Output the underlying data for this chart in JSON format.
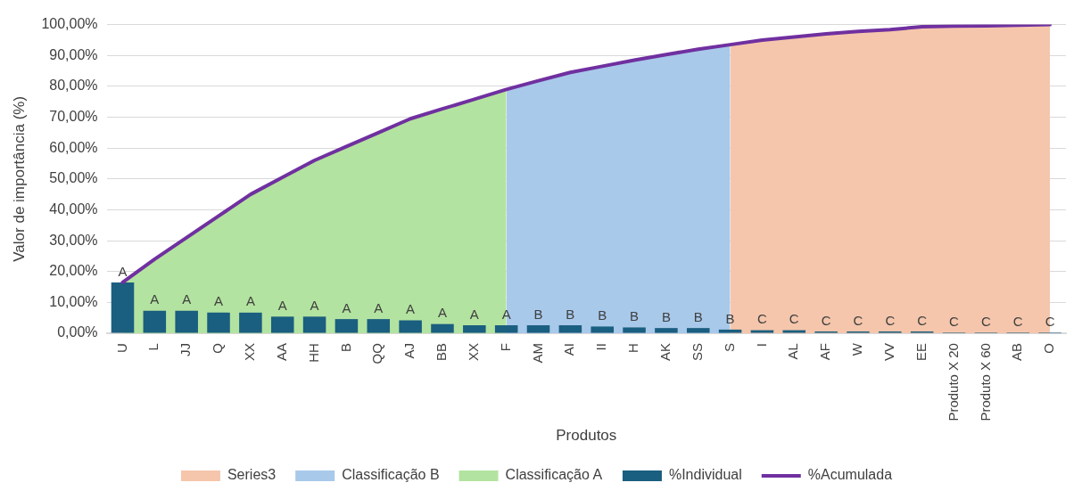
{
  "chart_data": {
    "type": "bar",
    "xlabel": "Produtos",
    "ylabel": "Valor de importância (%)",
    "categories": [
      "U",
      "L",
      "JJ",
      "Q",
      "XX",
      "AA",
      "HH",
      "B",
      "QQ",
      "AJ",
      "BB",
      "XX",
      "F",
      "AM",
      "AI",
      "II",
      "H",
      "AK",
      "SS",
      "S",
      "I",
      "AL",
      "AF",
      "W",
      "VV",
      "EE",
      "Produto X 20",
      "Produto X 60",
      "AB",
      "O"
    ],
    "series": [
      {
        "name": "Series3",
        "type": "area",
        "color": "#f5c6ac",
        "values": [
          null,
          null,
          null,
          null,
          null,
          null,
          null,
          null,
          null,
          null,
          null,
          null,
          null,
          null,
          null,
          null,
          null,
          null,
          null,
          93.5,
          95,
          96,
          97,
          97.8,
          98.4,
          99.3,
          99.5,
          99.6,
          99.8,
          100
        ]
      },
      {
        "name": "Classificação B",
        "type": "area",
        "color": "#a8c9ea",
        "values": [
          null,
          null,
          null,
          null,
          null,
          null,
          null,
          null,
          null,
          null,
          null,
          null,
          79,
          81.8,
          84.5,
          86.5,
          88.5,
          90.3,
          92,
          93.5,
          null,
          null,
          null,
          null,
          null,
          null,
          null,
          null,
          null,
          null
        ]
      },
      {
        "name": "Classificação A",
        "type": "area",
        "color": "#b3e3a0",
        "values": [
          16.5,
          24,
          31,
          38,
          45,
          50.5,
          56,
          60.5,
          65,
          69.5,
          72.7,
          75.8,
          79,
          null,
          null,
          null,
          null,
          null,
          null,
          null,
          null,
          null,
          null,
          null,
          null,
          null,
          null,
          null,
          null,
          null
        ]
      },
      {
        "name": "%Individual",
        "color": "#1a5e80",
        "values": [
          16.5,
          7.3,
          7.3,
          6.7,
          6.7,
          5.4,
          5.4,
          4.6,
          4.6,
          4.2,
          3,
          2.6,
          2.6,
          2.6,
          2.6,
          2.2,
          1.9,
          1.7,
          1.7,
          1.2,
          1,
          1,
          0.6,
          0.6,
          0.6,
          0.6,
          0.3,
          0.3,
          0.3,
          0.3
        ],
        "value_labels": [
          "A",
          "A",
          "A",
          "A",
          "A",
          "A",
          "A",
          "A",
          "A",
          "A",
          "A",
          "A",
          "A",
          "B",
          "B",
          "B",
          "B",
          "B",
          "B",
          "B",
          "C",
          "C",
          "C",
          "C",
          "C",
          "C",
          "C",
          "C",
          "C",
          "C"
        ]
      },
      {
        "name": "%Acumulada",
        "type": "line",
        "color": "#7030a0",
        "values": [
          16.5,
          24,
          31,
          38,
          45,
          50.5,
          56,
          60.5,
          65,
          69.5,
          72.7,
          75.8,
          79,
          81.8,
          84.5,
          86.5,
          88.5,
          90.3,
          92,
          93.5,
          95,
          96,
          97,
          97.8,
          98.4,
          99.3,
          99.5,
          99.6,
          99.8,
          100
        ]
      }
    ],
    "ylim": [
      0,
      100
    ],
    "yticks": [
      {
        "value": 0,
        "label": "0,00%"
      },
      {
        "value": 10,
        "label": "10,00%"
      },
      {
        "value": 20,
        "label": "20,00%"
      },
      {
        "value": 30,
        "label": "30,00%"
      },
      {
        "value": 40,
        "label": "40,00%"
      },
      {
        "value": 50,
        "label": "50,00%"
      },
      {
        "value": 60,
        "label": "60,00%"
      },
      {
        "value": 70,
        "label": "70,00%"
      },
      {
        "value": 80,
        "label": "80,00%"
      },
      {
        "value": 90,
        "label": "90,00%"
      },
      {
        "value": 100,
        "label": "100,00%"
      }
    ],
    "grid": "y",
    "legend": "bottom"
  }
}
